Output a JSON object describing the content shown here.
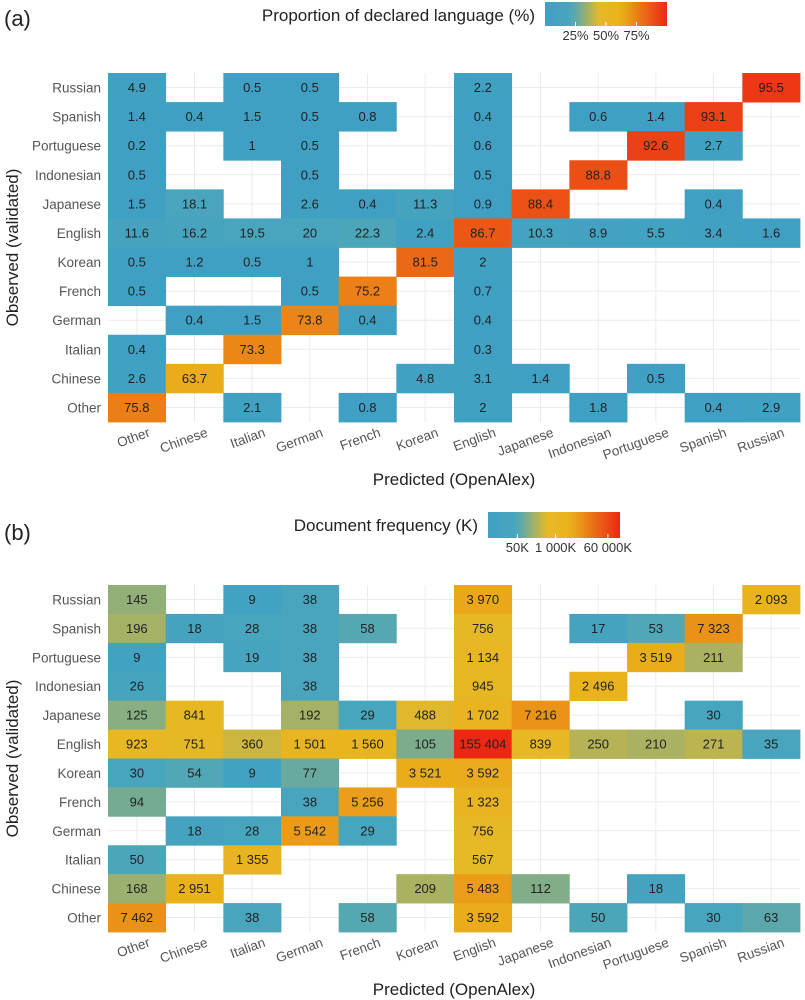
{
  "chart_data": [
    {
      "type": "heatmap",
      "panel": "(a)",
      "legend_title": "Proportion of declared language (%)",
      "legend_ticks": [
        "25%",
        "50%",
        "75%"
      ],
      "legend_tick_values": [
        25,
        50,
        75
      ],
      "legend_range": [
        0,
        100
      ],
      "xlabel": "Predicted (OpenAlex)",
      "ylabel": "Observed (validated)",
      "x_categories": [
        "Other",
        "Chinese",
        "Italian",
        "German",
        "French",
        "Korean",
        "English",
        "Japanese",
        "Indonesian",
        "Portuguese",
        "Spanish",
        "Russian"
      ],
      "y_categories": [
        "Russian",
        "Spanish",
        "Portuguese",
        "Indonesian",
        "Japanese",
        "English",
        "Korean",
        "French",
        "German",
        "Italian",
        "Chinese",
        "Other"
      ],
      "cells": [
        [
          "4.9",
          null,
          "0.5",
          "0.5",
          null,
          null,
          "2.2",
          null,
          null,
          null,
          null,
          "95.5"
        ],
        [
          "1.4",
          "0.4",
          "1.5",
          "0.5",
          "0.8",
          null,
          "0.4",
          null,
          "0.6",
          "1.4",
          "93.1",
          null
        ],
        [
          "0.2",
          null,
          "1",
          "0.5",
          null,
          null,
          "0.6",
          null,
          null,
          "92.6",
          "2.7",
          null
        ],
        [
          "0.5",
          null,
          null,
          "0.5",
          null,
          null,
          "0.5",
          null,
          "88.8",
          null,
          null,
          null
        ],
        [
          "1.5",
          "18.1",
          null,
          "2.6",
          "0.4",
          "11.3",
          "0.9",
          "88.4",
          null,
          null,
          "0.4",
          null
        ],
        [
          "11.6",
          "16.2",
          "19.5",
          "20",
          "22.3",
          "2.4",
          "86.7",
          "10.3",
          "8.9",
          "5.5",
          "3.4",
          "1.6"
        ],
        [
          "0.5",
          "1.2",
          "0.5",
          "1",
          null,
          "81.5",
          "2",
          null,
          null,
          null,
          null,
          null
        ],
        [
          "0.5",
          null,
          null,
          "0.5",
          "75.2",
          null,
          "0.7",
          null,
          null,
          null,
          null,
          null
        ],
        [
          null,
          "0.4",
          "1.5",
          "73.8",
          "0.4",
          null,
          "0.4",
          null,
          null,
          null,
          null,
          null
        ],
        [
          "0.4",
          null,
          "73.3",
          null,
          null,
          null,
          "0.3",
          null,
          null,
          null,
          null,
          null
        ],
        [
          "2.6",
          "63.7",
          null,
          null,
          null,
          "4.8",
          "3.1",
          "1.4",
          null,
          "0.5",
          null,
          null
        ],
        [
          "75.8",
          null,
          "2.1",
          null,
          "0.8",
          null,
          "2",
          null,
          "1.8",
          null,
          "0.4",
          "2.9"
        ]
      ]
    },
    {
      "type": "heatmap",
      "panel": "(b)",
      "legend_title": "Document frequency (K)",
      "legend_ticks": [
        "50K",
        "1 000K",
        "60 000K"
      ],
      "legend_tick_values": [
        50,
        1000,
        60000
      ],
      "legend_range": [
        5,
        155404
      ],
      "legend_scale": "log",
      "xlabel": "Predicted (OpenAlex)",
      "ylabel": "Observed (validated)",
      "x_categories": [
        "Other",
        "Chinese",
        "Italian",
        "German",
        "French",
        "Korean",
        "English",
        "Japanese",
        "Indonesian",
        "Portuguese",
        "Spanish",
        "Russian"
      ],
      "y_categories": [
        "Russian",
        "Spanish",
        "Portuguese",
        "Indonesian",
        "Japanese",
        "English",
        "Korean",
        "French",
        "German",
        "Italian",
        "Chinese",
        "Other"
      ],
      "cells": [
        [
          "145",
          null,
          "9",
          "38",
          null,
          null,
          "3 970",
          null,
          null,
          null,
          null,
          "2 093"
        ],
        [
          "196",
          "18",
          "28",
          "38",
          "58",
          null,
          "756",
          null,
          "17",
          "53",
          "7 323",
          null
        ],
        [
          "9",
          null,
          "19",
          "38",
          null,
          null,
          "1 134",
          null,
          null,
          "3 519",
          "211",
          null
        ],
        [
          "26",
          null,
          null,
          "38",
          null,
          null,
          "945",
          null,
          "2 496",
          null,
          null,
          null
        ],
        [
          "125",
          "841",
          null,
          "192",
          "29",
          "488",
          "1 702",
          "7 216",
          null,
          null,
          "30",
          null
        ],
        [
          "923",
          "751",
          "360",
          "1 501",
          "1 560",
          "105",
          "155 404",
          "839",
          "250",
          "210",
          "271",
          "35"
        ],
        [
          "30",
          "54",
          "9",
          "77",
          null,
          "3 521",
          "3 592",
          null,
          null,
          null,
          null,
          null
        ],
        [
          "94",
          null,
          null,
          "38",
          "5 256",
          null,
          "1 323",
          null,
          null,
          null,
          null,
          null
        ],
        [
          null,
          "18",
          "28",
          "5 542",
          "29",
          null,
          "756",
          null,
          null,
          null,
          null,
          null
        ],
        [
          "50",
          null,
          "1 355",
          null,
          null,
          null,
          "567",
          null,
          null,
          null,
          null,
          null
        ],
        [
          "168",
          "2 951",
          null,
          null,
          null,
          "209",
          "5 483",
          "112",
          null,
          "18",
          null,
          null
        ],
        [
          "7 462",
          null,
          "38",
          null,
          "58",
          null,
          "3 592",
          null,
          "50",
          null,
          "30",
          "63"
        ]
      ]
    }
  ]
}
